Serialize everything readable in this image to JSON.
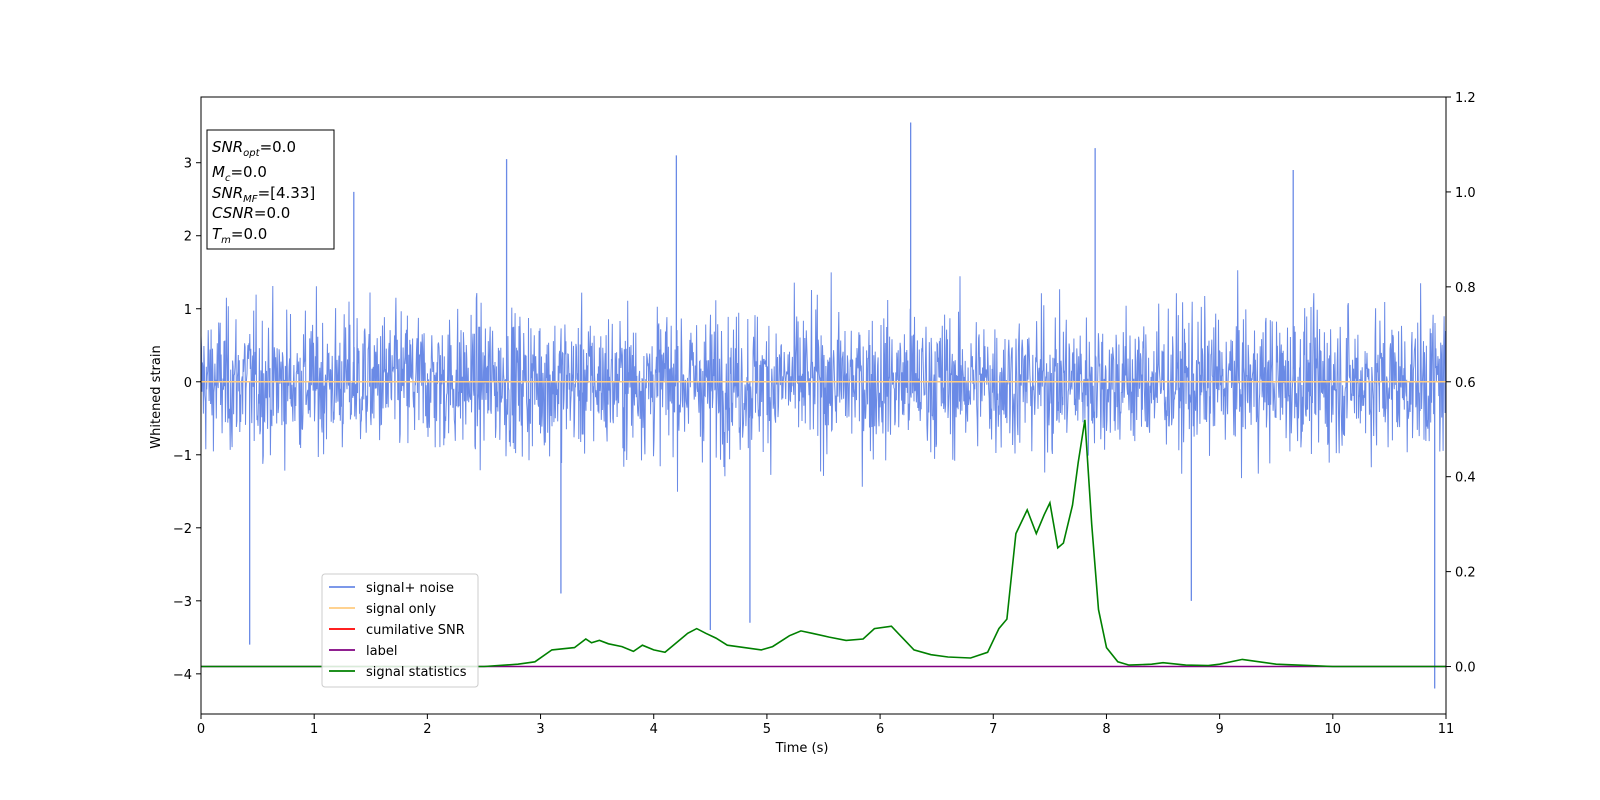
{
  "chart_data": {
    "type": "line",
    "title": "",
    "xlabel": "Time (s)",
    "ylabel": "Whitened strain",
    "xlim": [
      0,
      11
    ],
    "ylim_left": [
      -4.55,
      3.9
    ],
    "ylim_right": [
      -0.1,
      1.2
    ],
    "x_ticks": [
      "0",
      "1",
      "2",
      "3",
      "4",
      "5",
      "6",
      "7",
      "8",
      "9",
      "10",
      "11"
    ],
    "y_ticks_left": [
      "3",
      "2",
      "1",
      "0",
      "−1",
      "−2",
      "−3",
      "−4"
    ],
    "y_ticks_right": [
      "1.2",
      "1.0",
      "0.8",
      "0.6",
      "0.4",
      "0.2",
      "0.0"
    ],
    "grid": false,
    "legend_position": "lower-left",
    "series": [
      {
        "name": "signal+ noise",
        "axis": "left",
        "color": "#6a8ae6",
        "kind": "noise",
        "center": 0.0,
        "typical_amplitude": 1.3,
        "extreme_points": [
          [
            0.43,
            -3.6
          ],
          [
            1.35,
            2.6
          ],
          [
            2.7,
            3.05
          ],
          [
            3.18,
            -2.9
          ],
          [
            4.2,
            3.1
          ],
          [
            4.5,
            -3.4
          ],
          [
            4.85,
            -3.3
          ],
          [
            6.27,
            3.55
          ],
          [
            7.9,
            3.2
          ],
          [
            8.75,
            -3.0
          ],
          [
            9.65,
            2.9
          ],
          [
            10.9,
            -4.2
          ]
        ]
      },
      {
        "name": "signal only",
        "axis": "left",
        "color": "#ffcc80",
        "values_x": [
          0,
          11
        ],
        "values_y": [
          0,
          0
        ]
      },
      {
        "name": "cumilative SNR",
        "axis": "left",
        "color": "#ff0000",
        "values_x": [],
        "values_y": []
      },
      {
        "name": "label",
        "axis": "right",
        "color": "#800080",
        "values_x": [
          0,
          11
        ],
        "values_y": [
          0,
          0
        ]
      },
      {
        "name": "signal statistics",
        "axis": "right",
        "color": "#008000",
        "values_x": [
          0,
          0.5,
          1.0,
          1.5,
          2.0,
          2.5,
          2.8,
          2.95,
          3.1,
          3.3,
          3.4,
          3.45,
          3.52,
          3.6,
          3.72,
          3.82,
          3.9,
          4.0,
          4.1,
          4.2,
          4.3,
          4.38,
          4.46,
          4.55,
          4.65,
          4.8,
          4.95,
          5.05,
          5.2,
          5.3,
          5.4,
          5.55,
          5.7,
          5.85,
          5.95,
          6.1,
          6.2,
          6.3,
          6.45,
          6.6,
          6.8,
          6.95,
          7.05,
          7.12,
          7.2,
          7.3,
          7.38,
          7.45,
          7.5,
          7.57,
          7.62,
          7.7,
          7.75,
          7.81,
          7.87,
          7.93,
          8.0,
          8.1,
          8.2,
          8.4,
          8.5,
          8.7,
          8.9,
          9.0,
          9.2,
          9.35,
          9.5,
          9.8,
          10.0,
          11.0
        ],
        "values_y": [
          0.0,
          0.0,
          0.0,
          0.0,
          0.0,
          0.0,
          0.005,
          0.01,
          0.035,
          0.04,
          0.058,
          0.05,
          0.055,
          0.048,
          0.042,
          0.032,
          0.045,
          0.035,
          0.03,
          0.05,
          0.07,
          0.08,
          0.07,
          0.06,
          0.045,
          0.04,
          0.035,
          0.042,
          0.065,
          0.075,
          0.07,
          0.062,
          0.055,
          0.058,
          0.08,
          0.085,
          0.06,
          0.035,
          0.025,
          0.02,
          0.018,
          0.03,
          0.08,
          0.1,
          0.28,
          0.33,
          0.28,
          0.32,
          0.345,
          0.25,
          0.26,
          0.34,
          0.43,
          0.52,
          0.3,
          0.12,
          0.04,
          0.01,
          0.003,
          0.005,
          0.008,
          0.003,
          0.002,
          0.005,
          0.015,
          0.01,
          0.005,
          0.002,
          0.0,
          0.0
        ]
      }
    ]
  },
  "stats_box": {
    "snr_opt_base": "SNR",
    "snr_opt_sub": "opt",
    "snr_opt_val": "=0.0",
    "mc_base": "M",
    "mc_sub": "c",
    "mc_val": "=0.0",
    "snr_mf_base": "SNR",
    "snr_mf_sub": "MF",
    "snr_mf_val": "=[4.33]",
    "csnr_base": "CSNR",
    "csnr_val": "=0.0",
    "tm_base": "T",
    "tm_sub": "m",
    "tm_val": "=0.0"
  }
}
